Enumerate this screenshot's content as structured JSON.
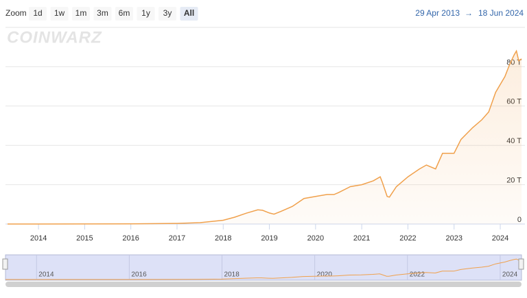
{
  "zoom_label": "Zoom",
  "zoom_buttons": [
    {
      "label": "1d"
    },
    {
      "label": "1w"
    },
    {
      "label": "1m"
    },
    {
      "label": "3m"
    },
    {
      "label": "6m"
    },
    {
      "label": "1y"
    },
    {
      "label": "3y"
    },
    {
      "label": "All",
      "selected": true
    }
  ],
  "range": {
    "from": "29 Apr 2013",
    "separator": "→",
    "to": "18 Jun 2024"
  },
  "watermark": "COINWARZ",
  "chart_data": {
    "type": "area",
    "color": "#f0a04b",
    "x": [
      2013.33,
      2014,
      2015,
      2016,
      2017,
      2017.5,
      2018,
      2018.25,
      2018.5,
      2018.75,
      2018.85,
      2019.0,
      2019.1,
      2019.25,
      2019.5,
      2019.75,
      2020,
      2020.25,
      2020.4,
      2020.5,
      2020.75,
      2021,
      2021.25,
      2021.4,
      2021.45,
      2021.55,
      2021.6,
      2021.75,
      2022,
      2022.25,
      2022.4,
      2022.6,
      2022.75,
      2023,
      2023.15,
      2023.4,
      2023.6,
      2023.75,
      2023.9,
      2024.1,
      2024.2,
      2024.3,
      2024.35,
      2024.4,
      2024.46
    ],
    "values": [
      0,
      0.003,
      0.04,
      0.1,
      0.3,
      0.7,
      1.9,
      3.5,
      5.5,
      7.2,
      7.0,
      5.6,
      5.0,
      6.4,
      9,
      13,
      14,
      15,
      15,
      16,
      19,
      20,
      22,
      24,
      21,
      14,
      13.7,
      19,
      24,
      28,
      30,
      28,
      36,
      36,
      43,
      49,
      53,
      57,
      67,
      75,
      81,
      86,
      88,
      83,
      84
    ],
    "xlim": [
      2013.33,
      2024.46
    ],
    "xticks": [
      2014,
      2015,
      2016,
      2017,
      2018,
      2019,
      2020,
      2021,
      2022,
      2023,
      2024
    ],
    "ylim": [
      0,
      100
    ],
    "yticks": [
      0,
      {
        "value": 20,
        "label": "20 T"
      },
      {
        "value": 40,
        "label": "40 T"
      },
      {
        "value": 60,
        "label": "60 T"
      },
      {
        "value": 80,
        "label": "80 T"
      }
    ],
    "grid": true
  }
}
